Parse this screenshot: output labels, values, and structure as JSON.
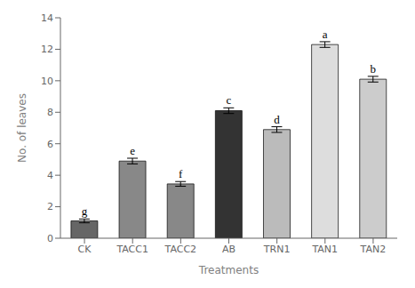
{
  "chart_data": {
    "type": "bar",
    "categories": [
      "CK",
      "TACC1",
      "TACC2",
      "AB",
      "TRN1",
      "TAN1",
      "TAN2"
    ],
    "values": [
      1.1,
      4.9,
      3.45,
      8.1,
      6.9,
      12.3,
      10.1
    ],
    "errors": [
      0.12,
      0.18,
      0.15,
      0.18,
      0.18,
      0.18,
      0.18
    ],
    "annotations": [
      "g",
      "e",
      "f",
      "c",
      "d",
      "a",
      "b"
    ],
    "xlabel": "Treatments",
    "ylabel": "No. of leaves",
    "ylim": [
      0,
      14
    ],
    "yticks": [
      0,
      2,
      4,
      6,
      8,
      10,
      12,
      14
    ],
    "colors": [
      "#666666",
      "#888888",
      "#888888",
      "#333333",
      "#bbbbbb",
      "#dddddd",
      "#cccccc"
    ],
    "grid": false
  }
}
